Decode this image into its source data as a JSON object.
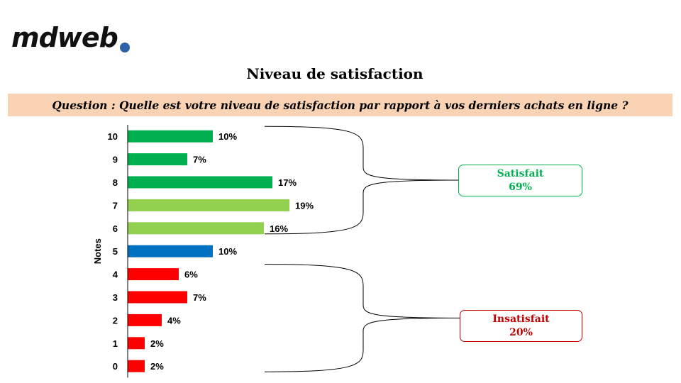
{
  "logo": {
    "text": "mdweb",
    "dot_color": "#2f5fa8"
  },
  "title": "Niveau de satisfaction",
  "question": {
    "text": "Question : Quelle est votre niveau de satisfaction par rapport à vos derniers achats en ligne ?",
    "background": "#fad2b4"
  },
  "chart_data": {
    "type": "bar",
    "orientation": "horizontal",
    "ylabel": "Notes",
    "categories": [
      "10",
      "9",
      "8",
      "7",
      "6",
      "5",
      "4",
      "3",
      "2",
      "1",
      "0"
    ],
    "values": [
      10,
      7,
      17,
      19,
      16,
      10,
      6,
      7,
      4,
      2,
      2
    ],
    "value_labels": [
      "10%",
      "7%",
      "17%",
      "19%",
      "16%",
      "10%",
      "6%",
      "7%",
      "4%",
      "2%",
      "2%"
    ],
    "colors": [
      "#00b050",
      "#00b050",
      "#00b050",
      "#92d050",
      "#92d050",
      "#0070c0",
      "#ff0000",
      "#ff0000",
      "#ff0000",
      "#ff0000",
      "#ff0000"
    ],
    "xlim": [
      0,
      25
    ],
    "grid": false,
    "groups": [
      {
        "label": "Satisfait",
        "value": "69%",
        "color": "#00b050",
        "from": "10",
        "to": "6"
      },
      {
        "label": "Insatisfait",
        "value": "20%",
        "color": "#c00000",
        "from": "4",
        "to": "0"
      }
    ]
  }
}
